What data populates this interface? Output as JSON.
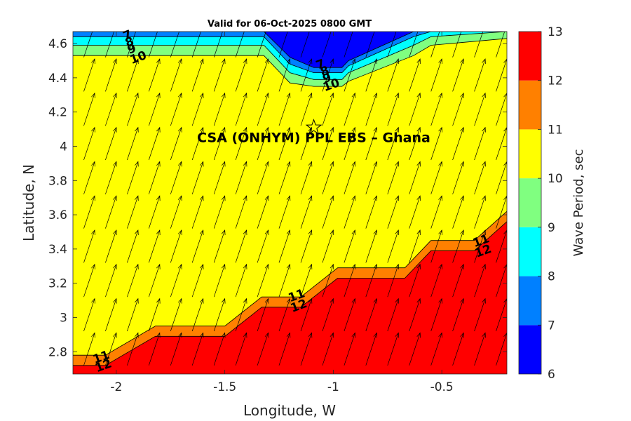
{
  "chart_data": {
    "type": "heatmap",
    "title": "Valid for 06-Oct-2025 0800 GMT",
    "xlabel": "Longitude, W",
    "ylabel": "Latitude, N",
    "xlim": [
      -2.2,
      -0.2
    ],
    "ylim": [
      2.67,
      4.67
    ],
    "xticks": [
      -2,
      -1.5,
      -1,
      -0.5
    ],
    "yticks": [
      2.8,
      3,
      3.2,
      3.4,
      3.6,
      3.8,
      4,
      4.2,
      4.4,
      4.6
    ],
    "colorbar": {
      "label": "Wave Period, sec",
      "range": [
        6,
        13
      ],
      "ticks": [
        6,
        7,
        8,
        9,
        10,
        11,
        12,
        13
      ],
      "colors": [
        "#0000ff",
        "#0080ff",
        "#00ffff",
        "#80ff80",
        "#ffff00",
        "#ff8000",
        "#ff0000"
      ]
    },
    "annotation": {
      "text": "CSA (ONHYM) PPL EBS  – Ghana",
      "marker": "star",
      "lon": -1.09,
      "lat": 4.11
    },
    "south_contours": {
      "x": [
        -2.2,
        -2.05,
        -1.82,
        -1.5,
        -1.33,
        -1.22,
        -1.15,
        -0.98,
        -0.67,
        -0.55,
        -0.35,
        -0.2
      ],
      "levels": [
        {
          "level": 11,
          "y": [
            2.78,
            2.78,
            2.95,
            2.95,
            3.12,
            3.12,
            3.12,
            3.29,
            3.29,
            3.45,
            3.45,
            3.62
          ]
        },
        {
          "level": 12,
          "y": [
            2.72,
            2.72,
            2.89,
            2.89,
            3.06,
            3.06,
            3.06,
            3.23,
            3.23,
            3.39,
            3.39,
            3.56
          ]
        }
      ]
    },
    "north_contours": {
      "x": [
        -2.2,
        -1.95,
        -1.32,
        -1.2,
        -1.09,
        -0.96,
        -0.93,
        -0.63,
        -0.55,
        -0.2
      ],
      "levels": [
        {
          "level": 7,
          "y": [
            4.67,
            4.67,
            4.67,
            4.52,
            4.46,
            4.46,
            4.5,
            4.67,
            4.67,
            4.67
          ]
        },
        {
          "level": 8,
          "y": [
            4.64,
            4.64,
            4.64,
            4.48,
            4.43,
            4.43,
            4.47,
            4.64,
            4.67,
            4.67
          ]
        },
        {
          "level": 9,
          "y": [
            4.59,
            4.59,
            4.59,
            4.43,
            4.39,
            4.39,
            4.43,
            4.59,
            4.64,
            4.67
          ]
        },
        {
          "level": 10,
          "y": [
            4.53,
            4.53,
            4.53,
            4.37,
            4.35,
            4.35,
            4.38,
            4.53,
            4.59,
            4.63
          ]
        }
      ]
    },
    "contour_labels": [
      {
        "text": "7",
        "lon": -1.95,
        "lat": 4.65
      },
      {
        "text": "8",
        "lon": -1.94,
        "lat": 4.61
      },
      {
        "text": "9",
        "lon": -1.93,
        "lat": 4.57
      },
      {
        "text": "10",
        "lon": -1.9,
        "lat": 4.52
      },
      {
        "text": "7",
        "lon": -1.06,
        "lat": 4.48
      },
      {
        "text": "8",
        "lon": -1.04,
        "lat": 4.44
      },
      {
        "text": "9",
        "lon": -1.03,
        "lat": 4.4
      },
      {
        "text": "10",
        "lon": -1.01,
        "lat": 4.36
      },
      {
        "text": "11",
        "lon": -2.07,
        "lat": 2.77
      },
      {
        "text": "12",
        "lon": -2.06,
        "lat": 2.72
      },
      {
        "text": "11",
        "lon": -1.17,
        "lat": 3.13
      },
      {
        "text": "12",
        "lon": -1.16,
        "lat": 3.07
      },
      {
        "text": "11",
        "lon": -0.32,
        "lat": 3.45
      },
      {
        "text": "12",
        "lon": -0.31,
        "lat": 3.39
      }
    ],
    "wave_direction_vectors": {
      "lons": [
        -2.15,
        -2.05,
        -1.95,
        -1.85,
        -1.75,
        -1.65,
        -1.55,
        -1.45,
        -1.35,
        -1.25,
        -1.15,
        -1.05,
        -0.95,
        -0.85,
        -0.75,
        -0.65,
        -0.55,
        -0.45,
        -0.35,
        -0.25
      ],
      "lats": [
        2.72,
        2.92,
        3.12,
        3.32,
        3.52,
        3.72,
        3.92,
        4.12,
        4.32,
        4.52
      ],
      "u": 0.05,
      "v": 0.19
    }
  }
}
